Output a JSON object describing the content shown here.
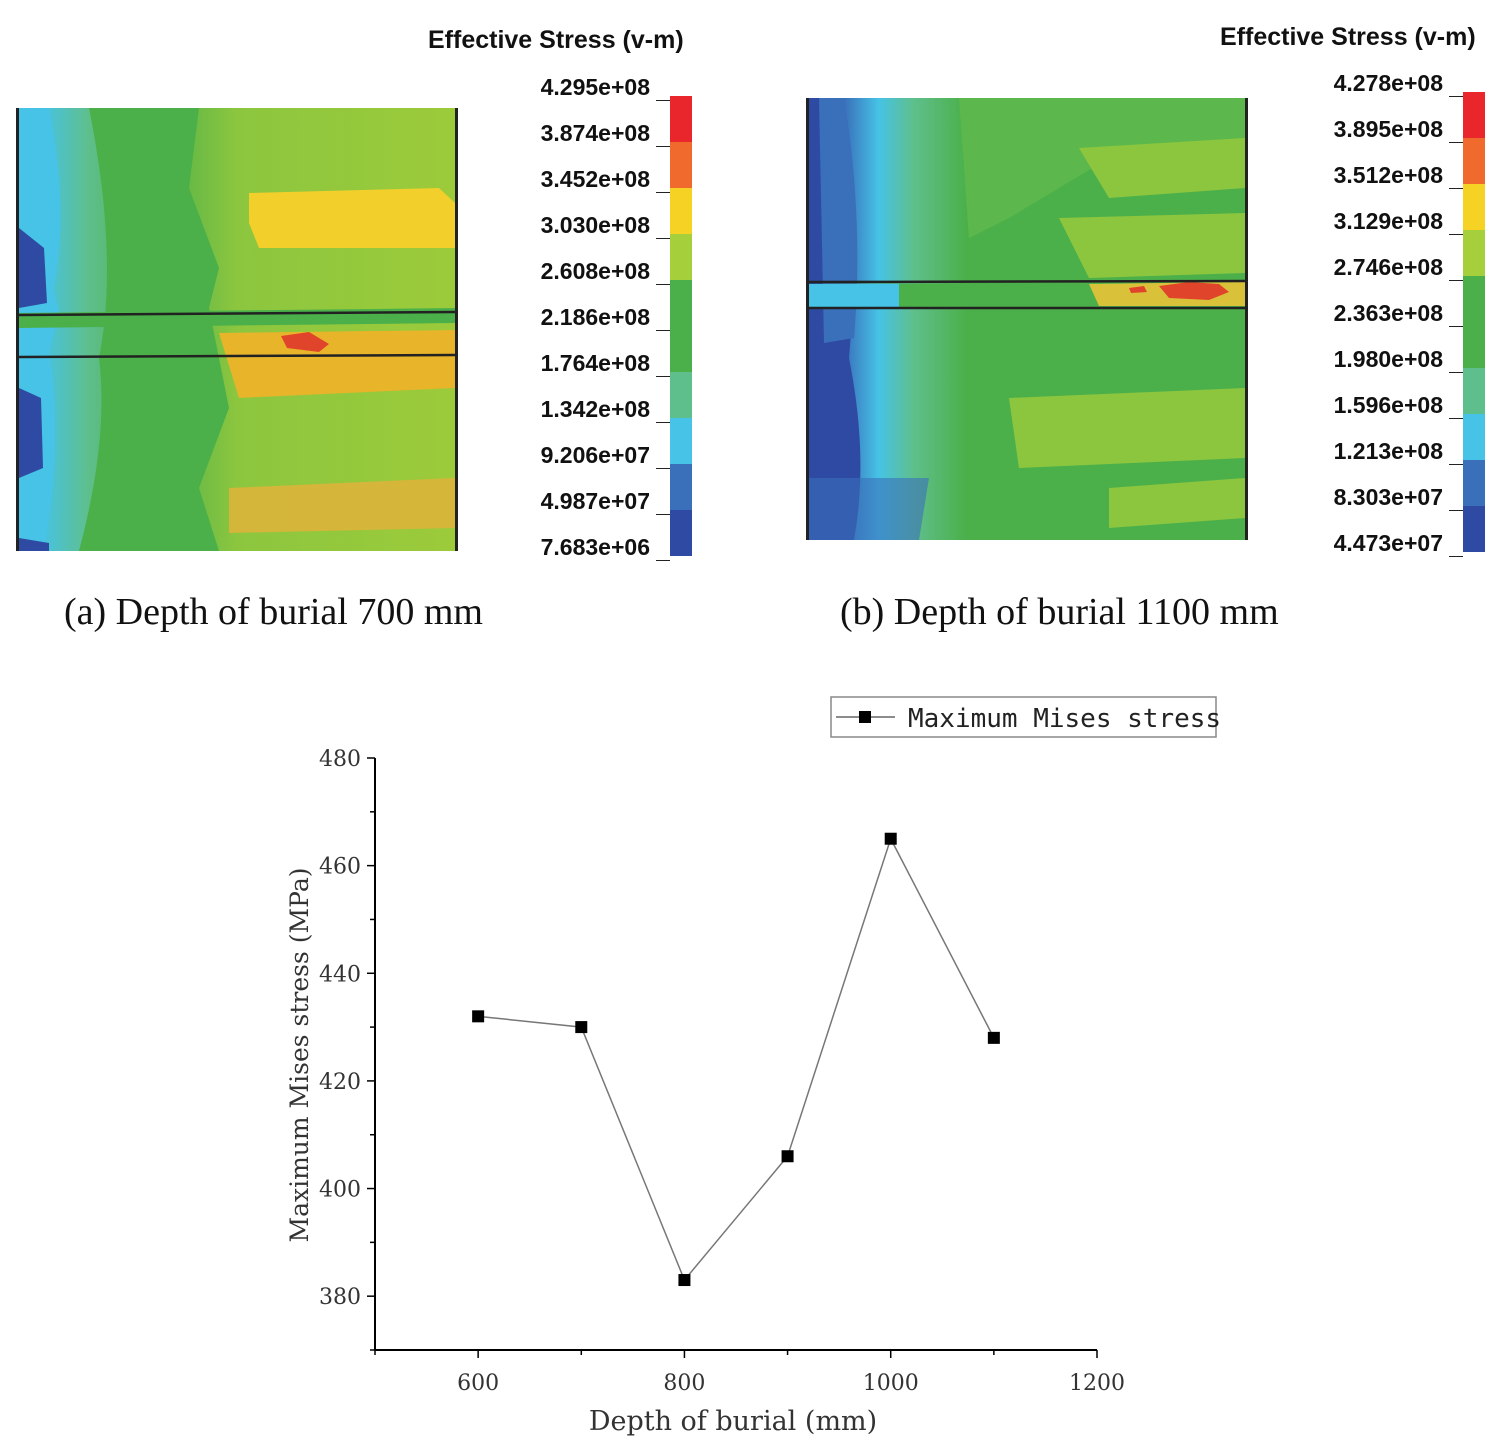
{
  "panel_a": {
    "legend_title": "Effective Stress (v-m)",
    "legend_values": [
      "4.295e+08",
      "3.874e+08",
      "3.452e+08",
      "3.030e+08",
      "2.608e+08",
      "2.186e+08",
      "1.764e+08",
      "1.342e+08",
      "9.206e+07",
      "4.987e+07",
      "7.683e+06"
    ],
    "caption": "(a) Depth of burial 700 mm"
  },
  "panel_b": {
    "legend_title": "Effective Stress (v-m)",
    "legend_values": [
      "4.278e+08",
      "3.895e+08",
      "3.512e+08",
      "3.129e+08",
      "2.746e+08",
      "2.363e+08",
      "1.980e+08",
      "1.596e+08",
      "1.213e+08",
      "8.303e+07",
      "4.473e+07"
    ],
    "caption": "(b) Depth of burial 1100 mm"
  },
  "colors": {
    "scale": [
      "#e8262b",
      "#ef6a2c",
      "#f6d224",
      "#a6cf3c",
      "#4bb04a",
      "#5fbf8c",
      "#46c3e6",
      "#3a6fba",
      "#2f4aa3"
    ]
  },
  "chart_data": {
    "type": "line",
    "title": "",
    "xlabel": "Depth of burial (mm)",
    "ylabel": "Maximum Mises stress (MPa)",
    "x": [
      600,
      700,
      800,
      900,
      1000,
      1100
    ],
    "series": [
      {
        "name": "Maximum Mises stress",
        "values": [
          432,
          430,
          383,
          406,
          465,
          428
        ]
      }
    ],
    "xlim": [
      500,
      1200
    ],
    "ylim": [
      370,
      480
    ],
    "xticks": [
      600,
      800,
      1000,
      1200
    ],
    "yticks": [
      380,
      400,
      420,
      440,
      460,
      480
    ],
    "legend": "top-right",
    "grid": false
  }
}
